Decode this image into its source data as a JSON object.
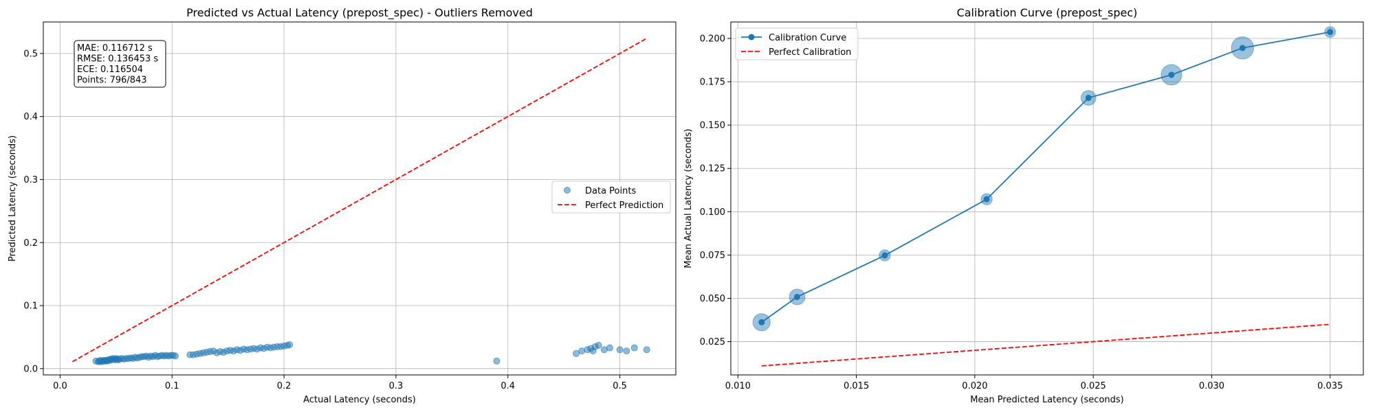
{
  "chart_data": [
    {
      "type": "scatter",
      "title": "Predicted vs Actual Latency (prepost_spec) - Outliers Removed",
      "xlabel": "Actual Latency (seconds)",
      "ylabel": "Predicted Latency (seconds)",
      "xlim": [
        -0.015,
        0.55
      ],
      "ylim": [
        -0.01,
        0.55
      ],
      "xticks": [
        0.0,
        0.1,
        0.2,
        0.3,
        0.4,
        0.5
      ],
      "xtick_labels": [
        "0.0",
        "0.1",
        "0.2",
        "0.3",
        "0.4",
        "0.5"
      ],
      "yticks": [
        0.0,
        0.1,
        0.2,
        0.3,
        0.4,
        0.5
      ],
      "ytick_labels": [
        "0.0",
        "0.1",
        "0.2",
        "0.3",
        "0.4",
        "0.5"
      ],
      "grid": true,
      "legend_position": "center-right",
      "stats_box": [
        "MAE: 0.116712 s",
        "RMSE: 0.136453 s",
        "ECE: 0.116504",
        "Points: 796/843"
      ],
      "series": [
        {
          "name": "Data Points",
          "kind": "scatter",
          "color": "#1f77b4",
          "x": [
            0.032,
            0.034,
            0.035,
            0.036,
            0.037,
            0.038,
            0.039,
            0.04,
            0.041,
            0.042,
            0.043,
            0.044,
            0.045,
            0.046,
            0.047,
            0.048,
            0.049,
            0.05,
            0.051,
            0.052,
            0.053,
            0.055,
            0.057,
            0.059,
            0.061,
            0.063,
            0.065,
            0.067,
            0.069,
            0.071,
            0.073,
            0.075,
            0.077,
            0.079,
            0.081,
            0.083,
            0.085,
            0.087,
            0.089,
            0.091,
            0.093,
            0.095,
            0.097,
            0.099,
            0.101,
            0.103,
            0.116,
            0.119,
            0.122,
            0.125,
            0.128,
            0.131,
            0.134,
            0.137,
            0.14,
            0.143,
            0.146,
            0.149,
            0.152,
            0.155,
            0.158,
            0.161,
            0.164,
            0.167,
            0.17,
            0.173,
            0.176,
            0.179,
            0.182,
            0.185,
            0.188,
            0.191,
            0.194,
            0.197,
            0.2,
            0.203,
            0.205,
            0.39,
            0.461,
            0.466,
            0.471,
            0.474,
            0.476,
            0.478,
            0.481,
            0.486,
            0.491,
            0.5,
            0.506,
            0.513,
            0.524
          ],
          "y": [
            0.012,
            0.011,
            0.012,
            0.013,
            0.011,
            0.012,
            0.013,
            0.012,
            0.013,
            0.012,
            0.014,
            0.013,
            0.015,
            0.014,
            0.016,
            0.015,
            0.014,
            0.016,
            0.015,
            0.014,
            0.015,
            0.016,
            0.015,
            0.016,
            0.016,
            0.017,
            0.016,
            0.018,
            0.017,
            0.018,
            0.019,
            0.019,
            0.02,
            0.018,
            0.02,
            0.019,
            0.021,
            0.019,
            0.02,
            0.021,
            0.02,
            0.021,
            0.02,
            0.021,
            0.021,
            0.02,
            0.022,
            0.022,
            0.023,
            0.024,
            0.025,
            0.026,
            0.027,
            0.028,
            0.025,
            0.027,
            0.026,
            0.028,
            0.029,
            0.028,
            0.03,
            0.029,
            0.031,
            0.03,
            0.031,
            0.032,
            0.031,
            0.033,
            0.032,
            0.034,
            0.033,
            0.034,
            0.035,
            0.035,
            0.036,
            0.037,
            0.038,
            0.012,
            0.024,
            0.028,
            0.03,
            0.032,
            0.028,
            0.035,
            0.037,
            0.03,
            0.033,
            0.03,
            0.028,
            0.033,
            0.03
          ]
        },
        {
          "name": "Perfect Prediction",
          "kind": "line",
          "style": "dashed",
          "color": "#ff0000",
          "x": [
            0.011,
            0.524
          ],
          "y": [
            0.011,
            0.524
          ]
        }
      ]
    },
    {
      "type": "line",
      "title": "Calibration Curve (prepost_spec)",
      "xlabel": "Mean Predicted Latency (seconds)",
      "ylabel": "Mean Actual Latency (seconds)",
      "xlim": [
        0.0097,
        0.0364
      ],
      "ylim": [
        0.0058,
        0.2095
      ],
      "xticks": [
        0.01,
        0.015,
        0.02,
        0.025,
        0.03,
        0.035
      ],
      "xtick_labels": [
        "0.010",
        "0.015",
        "0.020",
        "0.025",
        "0.030",
        "0.035"
      ],
      "yticks": [
        0.025,
        0.05,
        0.075,
        0.1,
        0.125,
        0.15,
        0.175,
        0.2
      ],
      "ytick_labels": [
        "0.025",
        "0.050",
        "0.075",
        "0.100",
        "0.125",
        "0.150",
        "0.175",
        "0.200"
      ],
      "grid": true,
      "legend_position": "top-left",
      "series": [
        {
          "name": "Calibration Curve",
          "kind": "line-marker",
          "color": "#1f77b4",
          "x": [
            0.011,
            0.0125,
            0.0162,
            0.0205,
            0.0248,
            0.0283,
            0.0313,
            0.035
          ],
          "y": [
            0.0362,
            0.0508,
            0.0748,
            0.1072,
            0.1657,
            0.179,
            0.1945,
            0.2037
          ],
          "bin_weight": [
            0.55,
            0.45,
            0.18,
            0.18,
            0.4,
            0.75,
            0.85,
            0.15
          ]
        },
        {
          "name": "Perfect Calibration",
          "kind": "line",
          "style": "dashed",
          "color": "#ff0000",
          "x": [
            0.011,
            0.035
          ],
          "y": [
            0.011,
            0.035
          ]
        }
      ]
    }
  ]
}
